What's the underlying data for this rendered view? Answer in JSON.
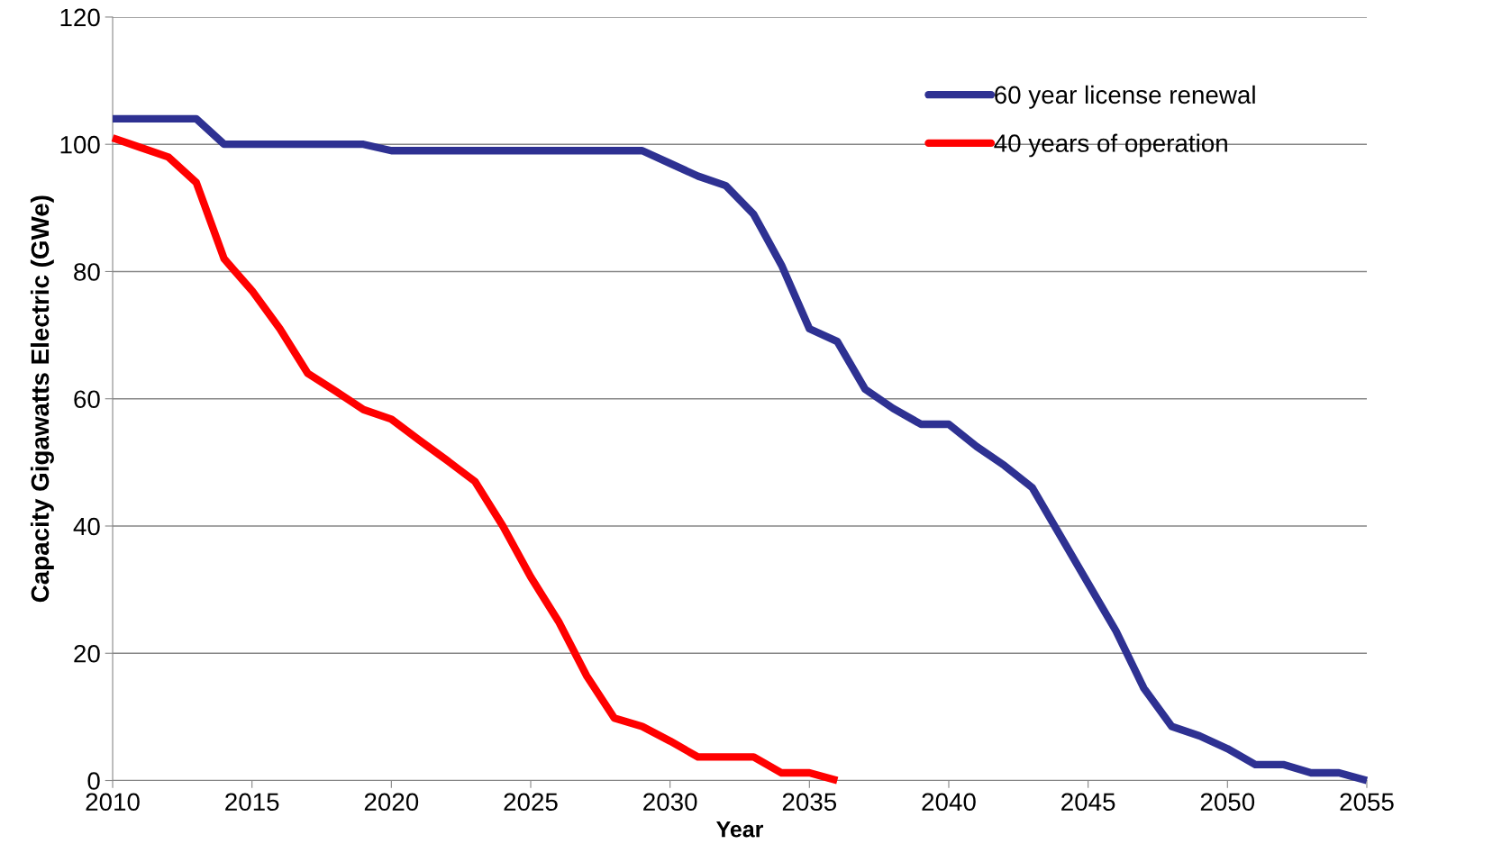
{
  "chart_data": {
    "type": "line",
    "xlabel": "Year",
    "ylabel": "Capacity Gigawatts Electric (GWe)",
    "xlim": [
      2010,
      2055
    ],
    "xticks": [
      2010,
      2015,
      2020,
      2025,
      2030,
      2035,
      2040,
      2045,
      2050,
      2055
    ],
    "ylim": [
      0,
      120
    ],
    "yticks": [
      0,
      20,
      40,
      60,
      80,
      100,
      120
    ],
    "grid": "y",
    "legend": "top right",
    "marker": "none",
    "line_style": "solid",
    "series": [
      {
        "name": "60 year license renewal",
        "color": "#2e3192",
        "x": [
          2010,
          2011,
          2012,
          2013,
          2014,
          2015,
          2016,
          2017,
          2018,
          2019,
          2020,
          2021,
          2022,
          2023,
          2024,
          2025,
          2026,
          2027,
          2028,
          2029,
          2030,
          2031,
          2032,
          2033,
          2034,
          2035,
          2036,
          2037,
          2038,
          2039,
          2040,
          2041,
          2042,
          2043,
          2044,
          2045,
          2046,
          2047,
          2048,
          2049,
          2050,
          2051,
          2052,
          2053,
          2054,
          2055
        ],
        "values": [
          104,
          104,
          104,
          104,
          100,
          100,
          100,
          100,
          100,
          100,
          99,
          99,
          99,
          99,
          99,
          99,
          99,
          99,
          99,
          99,
          97,
          95,
          93.5,
          89,
          81,
          71,
          69,
          61.5,
          58.5,
          56,
          56,
          52.5,
          49.5,
          46,
          38.5,
          31,
          23.5,
          14.5,
          8.5,
          7,
          5,
          2.5,
          2.5,
          1.2,
          1.2,
          0
        ]
      },
      {
        "name": "40 years of operation",
        "color": "#ff0000",
        "x": [
          2010,
          2011,
          2012,
          2013,
          2014,
          2015,
          2016,
          2017,
          2018,
          2019,
          2020,
          2021,
          2022,
          2023,
          2024,
          2025,
          2026,
          2027,
          2028,
          2029,
          2030,
          2031,
          2032,
          2033,
          2034,
          2035,
          2036
        ],
        "values": [
          101,
          99.5,
          98,
          94,
          82,
          77,
          71,
          64,
          61.2,
          58.3,
          56.8,
          53.5,
          50.3,
          47,
          40,
          32,
          25,
          16.5,
          9.8,
          8.5,
          6.2,
          3.7,
          3.7,
          3.7,
          1.2,
          1.2,
          0
        ]
      }
    ]
  }
}
